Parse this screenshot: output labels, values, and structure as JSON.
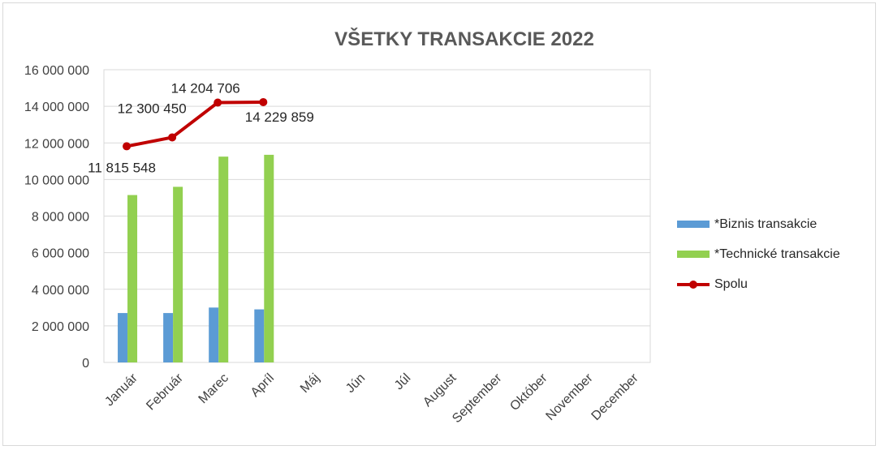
{
  "chart_data": {
    "type": "bar",
    "title": "VŠETKY TRANSAKCIE 2022",
    "categories": [
      "Január",
      "Február",
      "Marec",
      "Apríl",
      "Máj",
      "Jún",
      "Júl",
      "August",
      "September",
      "Október",
      "November",
      "December"
    ],
    "ylim": [
      0,
      16000000
    ],
    "yticks": [
      0,
      2000000,
      4000000,
      6000000,
      8000000,
      10000000,
      12000000,
      14000000,
      16000000
    ],
    "ytick_labels": [
      "0",
      "2 000 000",
      "4 000 000",
      "6 000 000",
      "8 000 000",
      "10 000 000",
      "12 000 000",
      "14 000 000",
      "16 000 000"
    ],
    "grid": true,
    "legend_position": "right",
    "series": [
      {
        "name": "*Biznis transakcie",
        "type": "bar",
        "color": "#5b9bd5",
        "values": [
          2700000,
          2700000,
          3000000,
          2900000,
          null,
          null,
          null,
          null,
          null,
          null,
          null,
          null
        ]
      },
      {
        "name": "*Technické transakcie",
        "type": "bar",
        "color": "#92d050",
        "values": [
          9150000,
          9600000,
          11250000,
          11350000,
          null,
          null,
          null,
          null,
          null,
          null,
          null,
          null
        ]
      },
      {
        "name": "Spolu",
        "type": "line",
        "color": "#c00000",
        "values": [
          11815548,
          12300450,
          14204706,
          14229859,
          null,
          null,
          null,
          null,
          null,
          null,
          null,
          null
        ],
        "data_labels": [
          "11 815 548",
          "12 300 450",
          "14 204 706",
          "14 229 859"
        ]
      }
    ]
  }
}
